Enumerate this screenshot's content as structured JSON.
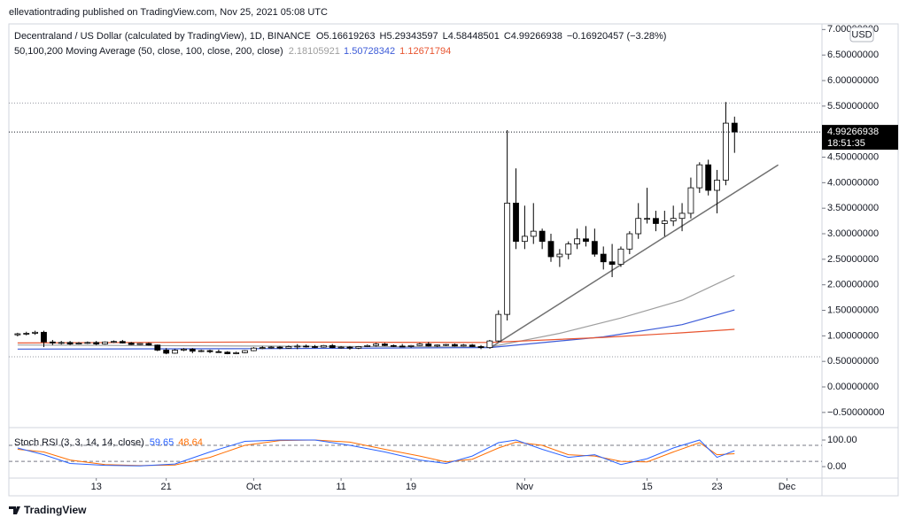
{
  "publisher": "ellevationtrading published on TradingView.com, Nov 25, 2021 05:08 UTC",
  "footer": "TradingView",
  "chart_data": {
    "type": "candlestick",
    "title": "Decentraland / US Dollar (calculated by TradingView), 1D, BINANCE",
    "ohlc_labels": {
      "open": "O5.16619263",
      "high": "H5.29343597",
      "low": "L4.58448501",
      "close": "C4.99266938",
      "change": "−0.16920457 (−3.28%)"
    },
    "ma_title": "50,100,200 Moving Average (50, close, 100, close, 200, close)",
    "currency": "USD",
    "countdown": "18:51:35",
    "up_color": "#ffffff",
    "down_color": "#000000",
    "edge_color": "#000000",
    "xlim": [
      "2021-09-03",
      "2021-12-05"
    ],
    "xticks": [
      {
        "value": "2021-09-13",
        "label": "13"
      },
      {
        "value": "2021-09-21",
        "label": "21"
      },
      {
        "value": "2021-10-01",
        "label": "Oct"
      },
      {
        "value": "2021-10-11",
        "label": "11"
      },
      {
        "value": "2021-10-19",
        "label": "19"
      },
      {
        "value": "2021-11-01",
        "label": "Nov"
      },
      {
        "value": "2021-11-15",
        "label": "15"
      },
      {
        "value": "2021-11-23",
        "label": "23"
      },
      {
        "value": "2021-12-01",
        "label": "Dec"
      }
    ],
    "ylim": [
      -0.78,
      7.11
    ],
    "yticks": [
      {
        "value": -0.5,
        "label": "−0.50000000"
      },
      {
        "value": 0,
        "label": "0.00000000"
      },
      {
        "value": 0.5,
        "label": "0.50000000"
      },
      {
        "value": 1,
        "label": "1.00000000"
      },
      {
        "value": 1.5,
        "label": "1.50000000"
      },
      {
        "value": 2,
        "label": "2.00000000"
      },
      {
        "value": 2.5,
        "label": "2.50000000"
      },
      {
        "value": 3,
        "label": "3.00000000"
      },
      {
        "value": 3.5,
        "label": "3.50000000"
      },
      {
        "value": 4,
        "label": "4.00000000"
      },
      {
        "value": 4.5,
        "label": "4.50000000"
      },
      {
        "value": 5,
        "label": "5.00000000"
      },
      {
        "value": 5.5,
        "label": "5.50000000"
      },
      {
        "value": 6,
        "label": "6.00000000"
      },
      {
        "value": 6.5,
        "label": "6.50000000"
      },
      {
        "value": 7,
        "label": "7.00000000"
      }
    ],
    "price_lines": [
      5.56,
      0.59
    ],
    "candles": {
      "x": [
        "2021-09-04",
        "2021-09-05",
        "2021-09-06",
        "2021-09-07",
        "2021-09-08",
        "2021-09-09",
        "2021-09-10",
        "2021-09-11",
        "2021-09-12",
        "2021-09-13",
        "2021-09-14",
        "2021-09-15",
        "2021-09-16",
        "2021-09-17",
        "2021-09-18",
        "2021-09-19",
        "2021-09-20",
        "2021-09-21",
        "2021-09-22",
        "2021-09-23",
        "2021-09-24",
        "2021-09-25",
        "2021-09-26",
        "2021-09-27",
        "2021-09-28",
        "2021-09-29",
        "2021-09-30",
        "2021-10-01",
        "2021-10-02",
        "2021-10-03",
        "2021-10-04",
        "2021-10-05",
        "2021-10-06",
        "2021-10-07",
        "2021-10-08",
        "2021-10-09",
        "2021-10-10",
        "2021-10-11",
        "2021-10-12",
        "2021-10-13",
        "2021-10-14",
        "2021-10-15",
        "2021-10-16",
        "2021-10-17",
        "2021-10-18",
        "2021-10-19",
        "2021-10-20",
        "2021-10-21",
        "2021-10-22",
        "2021-10-23",
        "2021-10-24",
        "2021-10-25",
        "2021-10-26",
        "2021-10-27",
        "2021-10-28",
        "2021-10-29",
        "2021-10-30",
        "2021-10-31",
        "2021-11-01",
        "2021-11-02",
        "2021-11-03",
        "2021-11-04",
        "2021-11-05",
        "2021-11-06",
        "2021-11-07",
        "2021-11-08",
        "2021-11-09",
        "2021-11-10",
        "2021-11-11",
        "2021-11-12",
        "2021-11-13",
        "2021-11-14",
        "2021-11-15",
        "2021-11-16",
        "2021-11-17",
        "2021-11-18",
        "2021-11-19",
        "2021-11-20",
        "2021-11-21",
        "2021-11-22",
        "2021-11-23",
        "2021-11-24",
        "2021-11-25"
      ],
      "open": [
        1.02,
        1.04,
        1.05,
        1.07,
        0.88,
        0.86,
        0.87,
        0.84,
        0.86,
        0.87,
        0.84,
        0.88,
        0.89,
        0.86,
        0.83,
        0.85,
        0.82,
        0.72,
        0.66,
        0.72,
        0.74,
        0.7,
        0.71,
        0.69,
        0.68,
        0.65,
        0.67,
        0.71,
        0.76,
        0.77,
        0.78,
        0.76,
        0.79,
        0.8,
        0.79,
        0.78,
        0.81,
        0.77,
        0.78,
        0.76,
        0.79,
        0.81,
        0.84,
        0.81,
        0.8,
        0.79,
        0.81,
        0.84,
        0.8,
        0.82,
        0.83,
        0.8,
        0.82,
        0.79,
        0.77,
        0.9,
        1.42,
        3.6,
        2.85,
        2.95,
        3.05,
        2.85,
        2.55,
        2.6,
        2.8,
        2.9,
        2.85,
        2.6,
        2.45,
        2.4,
        2.7,
        3.0,
        3.3,
        3.3,
        3.2,
        3.25,
        3.3,
        3.4,
        3.9,
        4.35,
        3.85,
        4.05,
        5.16619263
      ],
      "high": [
        1.06,
        1.08,
        1.1,
        1.1,
        0.92,
        0.9,
        0.9,
        0.88,
        0.89,
        0.9,
        0.89,
        0.91,
        0.92,
        0.88,
        0.86,
        0.87,
        0.83,
        0.76,
        0.74,
        0.76,
        0.76,
        0.73,
        0.73,
        0.73,
        0.7,
        0.69,
        0.72,
        0.78,
        0.8,
        0.8,
        0.8,
        0.81,
        0.84,
        0.83,
        0.82,
        0.82,
        0.84,
        0.8,
        0.8,
        0.8,
        0.83,
        0.86,
        0.86,
        0.83,
        0.84,
        0.82,
        0.86,
        0.88,
        0.83,
        0.84,
        0.85,
        0.84,
        0.84,
        0.82,
        0.92,
        1.5,
        5.03,
        4.28,
        3.55,
        3.6,
        3.1,
        3.0,
        2.7,
        2.85,
        3.1,
        3.15,
        3.1,
        2.75,
        2.8,
        2.75,
        3.05,
        3.6,
        3.9,
        3.45,
        3.45,
        3.55,
        3.6,
        4.1,
        4.4,
        4.45,
        4.25,
        5.58,
        5.29343597
      ],
      "low": [
        0.99,
        1.01,
        1.02,
        0.78,
        0.82,
        0.83,
        0.82,
        0.83,
        0.84,
        0.82,
        0.83,
        0.86,
        0.85,
        0.82,
        0.82,
        0.81,
        0.7,
        0.64,
        0.65,
        0.7,
        0.66,
        0.68,
        0.66,
        0.67,
        0.64,
        0.64,
        0.66,
        0.7,
        0.74,
        0.75,
        0.74,
        0.75,
        0.74,
        0.77,
        0.76,
        0.77,
        0.76,
        0.75,
        0.73,
        0.74,
        0.78,
        0.79,
        0.8,
        0.78,
        0.78,
        0.77,
        0.8,
        0.79,
        0.78,
        0.8,
        0.79,
        0.79,
        0.78,
        0.74,
        0.75,
        0.88,
        1.3,
        2.7,
        2.7,
        2.8,
        2.7,
        2.45,
        2.35,
        2.5,
        2.7,
        2.75,
        2.55,
        2.3,
        2.15,
        2.35,
        2.6,
        2.9,
        3.2,
        3.05,
        2.95,
        3.15,
        3.05,
        3.3,
        3.8,
        3.75,
        3.4,
        3.95,
        4.58448501
      ],
      "close": [
        1.04,
        1.05,
        1.07,
        0.88,
        0.86,
        0.87,
        0.84,
        0.86,
        0.87,
        0.84,
        0.88,
        0.89,
        0.86,
        0.83,
        0.85,
        0.82,
        0.72,
        0.66,
        0.72,
        0.74,
        0.7,
        0.71,
        0.69,
        0.68,
        0.65,
        0.67,
        0.71,
        0.76,
        0.77,
        0.78,
        0.76,
        0.79,
        0.8,
        0.79,
        0.78,
        0.81,
        0.77,
        0.78,
        0.76,
        0.79,
        0.81,
        0.84,
        0.81,
        0.8,
        0.79,
        0.81,
        0.84,
        0.8,
        0.82,
        0.83,
        0.8,
        0.82,
        0.79,
        0.77,
        0.9,
        1.42,
        3.6,
        2.85,
        2.95,
        3.05,
        2.85,
        2.55,
        2.6,
        2.8,
        2.9,
        2.85,
        2.6,
        2.45,
        2.4,
        2.7,
        3.0,
        3.3,
        3.3,
        3.2,
        3.25,
        3.3,
        3.4,
        3.9,
        4.35,
        3.85,
        4.05,
        5.16619263,
        4.99266938
      ]
    },
    "moving_averages": [
      {
        "color": "#9e9e9e",
        "x": [
          "2021-09-04",
          "2021-10-01",
          "2021-10-28",
          "2021-11-05",
          "2021-11-12",
          "2021-11-19",
          "2021-11-25"
        ],
        "values": [
          0.82,
          0.8,
          0.78,
          1.05,
          1.35,
          1.7,
          2.18105921
        ]
      },
      {
        "color": "#3c5bd8",
        "x": [
          "2021-09-04",
          "2021-10-01",
          "2021-10-28",
          "2021-11-10",
          "2021-11-19",
          "2021-11-25"
        ],
        "values": [
          0.74,
          0.75,
          0.77,
          0.98,
          1.22,
          1.50728342
        ]
      },
      {
        "color": "#e8542f",
        "x": [
          "2021-09-04",
          "2021-10-01",
          "2021-10-28",
          "2021-11-10",
          "2021-11-19",
          "2021-11-25"
        ],
        "values": [
          0.86,
          0.88,
          0.87,
          0.97,
          1.06,
          1.12671794
        ]
      }
    ],
    "trendline": {
      "color": "#707070",
      "x": [
        "2021-10-28",
        "2021-11-30"
      ],
      "values": [
        0.76,
        4.35
      ]
    },
    "stoch_rsi": {
      "title": "Stoch RSI (3, 3, 14, 14, close)",
      "ylim": [
        -43,
        140
      ],
      "yticks": [
        {
          "value": 0,
          "label": "0.00"
        },
        {
          "value": 100,
          "label": "100.00"
        }
      ],
      "bands": [
        20,
        80
      ],
      "x": [
        "2021-09-04",
        "2021-09-07",
        "2021-09-10",
        "2021-09-14",
        "2021-09-18",
        "2021-09-22",
        "2021-09-26",
        "2021-09-30",
        "2021-10-04",
        "2021-10-08",
        "2021-10-12",
        "2021-10-16",
        "2021-10-20",
        "2021-10-23",
        "2021-10-26",
        "2021-10-29",
        "2021-10-31",
        "2021-11-03",
        "2021-11-06",
        "2021-11-09",
        "2021-11-12",
        "2021-11-15",
        "2021-11-18",
        "2021-11-21",
        "2021-11-23",
        "2021-11-25"
      ],
      "k": {
        "color": "#2962ff",
        "values": [
          70,
          45,
          12,
          5,
          3,
          10,
          55,
          95,
          100,
          100,
          80,
          55,
          25,
          12,
          40,
          90,
          100,
          65,
          35,
          45,
          8,
          30,
          70,
          100,
          35,
          59.65
        ]
      },
      "d": {
        "color": "#ff6d00",
        "values": [
          65,
          55,
          25,
          8,
          4,
          6,
          35,
          80,
          98,
          100,
          92,
          65,
          40,
          18,
          28,
          70,
          92,
          80,
          45,
          40,
          20,
          18,
          55,
          90,
          45,
          48.64
        ]
      }
    }
  }
}
